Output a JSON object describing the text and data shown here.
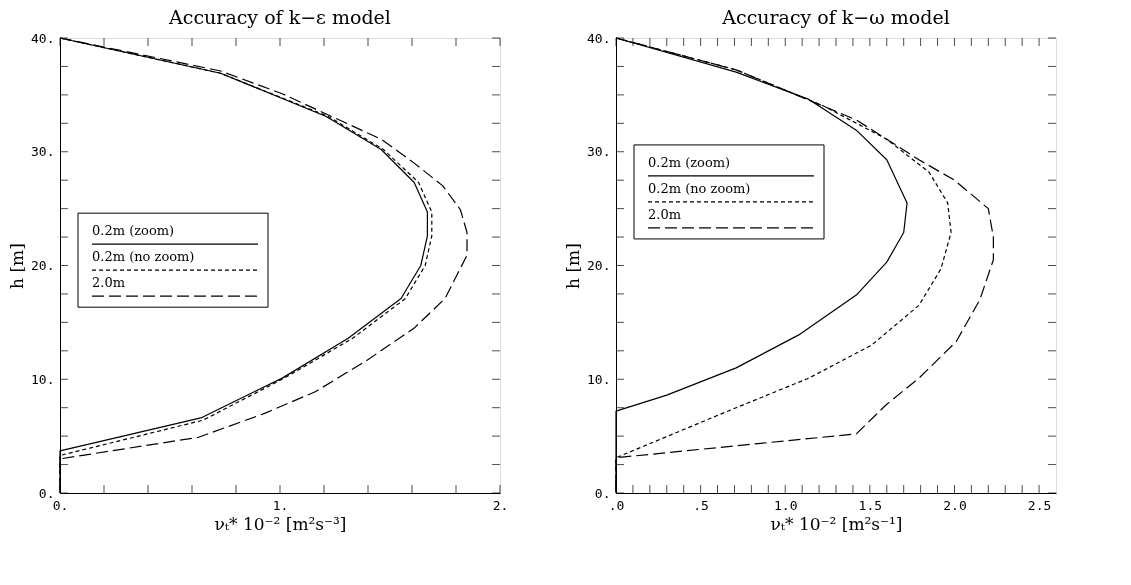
{
  "chart_data": [
    {
      "type": "line",
      "title": "Accuracy of k−ε model",
      "xlabel": "νₜ* 10⁻² [m²s⁻³]",
      "ylabel": "h [m]",
      "xlim": [
        0,
        2
      ],
      "ylim": [
        0,
        40
      ],
      "xticks": [
        {
          "value": 0,
          "label": "0."
        },
        {
          "value": 0.2,
          "label": null
        },
        {
          "value": 0.4,
          "label": null
        },
        {
          "value": 0.6,
          "label": null
        },
        {
          "value": 0.8,
          "label": null
        },
        {
          "value": 1,
          "label": "1."
        },
        {
          "value": 1.2,
          "label": null
        },
        {
          "value": 1.4,
          "label": null
        },
        {
          "value": 1.6,
          "label": null
        },
        {
          "value": 1.8,
          "label": null
        },
        {
          "value": 2,
          "label": "2."
        }
      ],
      "yticks": [
        {
          "value": 0,
          "label": "0."
        },
        {
          "value": 2.5,
          "label": null
        },
        {
          "value": 5,
          "label": null
        },
        {
          "value": 7.5,
          "label": null
        },
        {
          "value": 10,
          "label": "10."
        },
        {
          "value": 12.5,
          "label": null
        },
        {
          "value": 15,
          "label": null
        },
        {
          "value": 17.5,
          "label": null
        },
        {
          "value": 20,
          "label": "20."
        },
        {
          "value": 22.5,
          "label": null
        },
        {
          "value": 25,
          "label": null
        },
        {
          "value": 27.5,
          "label": null
        },
        {
          "value": 30,
          "label": "30."
        },
        {
          "value": 32.5,
          "label": null
        },
        {
          "value": 35,
          "label": null
        },
        {
          "value": 37.5,
          "label": null
        },
        {
          "value": 40,
          "label": "40."
        }
      ],
      "legend": "left",
      "grid": false,
      "series": [
        {
          "name": "0.2m (zoom)",
          "color": "#000000",
          "line_style": "solid",
          "x": [
            0,
            0.73,
            1.21,
            1.46,
            1.61,
            1.67,
            1.67,
            1.64,
            1.55,
            1.31,
            1.01,
            0.64,
            0,
            0
          ],
          "values": [
            40,
            36.9,
            33.1,
            30.2,
            27.3,
            24.7,
            22.6,
            20.0,
            17.1,
            13.6,
            10.1,
            6.6,
            3.7,
            0
          ]
        },
        {
          "name": "0.2m (no zoom)",
          "color": "#000000",
          "line_style": "dotted",
          "x": [
            0,
            0.73,
            1.22,
            1.47,
            1.63,
            1.69,
            1.69,
            1.66,
            1.57,
            1.33,
            1.02,
            0.65,
            0,
            0
          ],
          "values": [
            40,
            36.9,
            33.1,
            30.2,
            27.3,
            24.7,
            22.6,
            20.0,
            17.1,
            13.6,
            10.1,
            6.4,
            3.3,
            0
          ]
        },
        {
          "name": "2.0m",
          "color": "#000000",
          "line_style": "dashed",
          "x": [
            0,
            0.73,
            1.01,
            1.46,
            1.61,
            1.74,
            1.82,
            1.85,
            1.85,
            1.75,
            1.61,
            1.39,
            1.16,
            0.93,
            0.63,
            0,
            0
          ],
          "values": [
            40,
            37.1,
            35.1,
            31.1,
            29.0,
            27.0,
            24.9,
            22.9,
            20.9,
            17.1,
            14.5,
            11.6,
            8.9,
            7.0,
            4.9,
            3.0,
            0
          ]
        }
      ]
    },
    {
      "type": "line",
      "title": "Accuracy of k−ω model",
      "xlabel": "νₜ* 10⁻² [m²s⁻¹]",
      "ylabel": "h [m]",
      "xlim": [
        0,
        2.6
      ],
      "ylim": [
        0,
        40
      ],
      "xticks": [
        {
          "value": 0,
          "label": ".0"
        },
        {
          "value": 0.1,
          "label": null
        },
        {
          "value": 0.2,
          "label": null
        },
        {
          "value": 0.3,
          "label": null
        },
        {
          "value": 0.4,
          "label": null
        },
        {
          "value": 0.5,
          "label": ".5"
        },
        {
          "value": 0.6,
          "label": null
        },
        {
          "value": 0.7,
          "label": null
        },
        {
          "value": 0.8,
          "label": null
        },
        {
          "value": 0.9,
          "label": null
        },
        {
          "value": 1.0,
          "label": "1.0"
        },
        {
          "value": 1.1,
          "label": null
        },
        {
          "value": 1.2,
          "label": null
        },
        {
          "value": 1.3,
          "label": null
        },
        {
          "value": 1.4,
          "label": null
        },
        {
          "value": 1.5,
          "label": "1.5"
        },
        {
          "value": 1.6,
          "label": null
        },
        {
          "value": 1.7,
          "label": null
        },
        {
          "value": 1.8,
          "label": null
        },
        {
          "value": 1.9,
          "label": null
        },
        {
          "value": 2.0,
          "label": "2.0"
        },
        {
          "value": 2.1,
          "label": null
        },
        {
          "value": 2.2,
          "label": null
        },
        {
          "value": 2.3,
          "label": null
        },
        {
          "value": 2.4,
          "label": null
        },
        {
          "value": 2.5,
          "label": "2.5"
        }
      ],
      "yticks": [
        {
          "value": 0,
          "label": "0."
        },
        {
          "value": 2.5,
          "label": null
        },
        {
          "value": 5,
          "label": null
        },
        {
          "value": 7.5,
          "label": null
        },
        {
          "value": 10,
          "label": "10."
        },
        {
          "value": 12.5,
          "label": null
        },
        {
          "value": 15,
          "label": null
        },
        {
          "value": 17.5,
          "label": null
        },
        {
          "value": 20,
          "label": "20."
        },
        {
          "value": 22.5,
          "label": null
        },
        {
          "value": 25,
          "label": null
        },
        {
          "value": 27.5,
          "label": null
        },
        {
          "value": 30,
          "label": "30."
        },
        {
          "value": 32.5,
          "label": null
        },
        {
          "value": 35,
          "label": null
        },
        {
          "value": 37.5,
          "label": null
        },
        {
          "value": 40,
          "label": "40."
        }
      ],
      "legend": "top left",
      "grid": false,
      "series": [
        {
          "name": "0.2m (zoom)",
          "color": "#000000",
          "line_style": "solid",
          "x": [
            0,
            0.71,
            1.14,
            1.42,
            1.6,
            1.72,
            1.7,
            1.6,
            1.42,
            1.08,
            0.71,
            0.3,
            0,
            0
          ],
          "values": [
            40,
            37.0,
            34.6,
            31.9,
            29.3,
            25.5,
            22.9,
            20.3,
            17.4,
            13.9,
            11.0,
            8.6,
            7.2,
            0
          ]
        },
        {
          "name": "0.2m (no zoom)",
          "color": "#000000",
          "line_style": "dotted",
          "x": [
            0,
            0.71,
            1.23,
            1.6,
            1.85,
            1.96,
            1.98,
            1.92,
            1.79,
            1.51,
            1.14,
            0.71,
            0,
            0
          ],
          "values": [
            40,
            37.2,
            34.0,
            31.1,
            28.2,
            25.5,
            22.9,
            19.7,
            16.5,
            13.0,
            10.1,
            7.5,
            3.1,
            0
          ]
        },
        {
          "name": "2.0m",
          "color": "#000000",
          "line_style": "dashed",
          "x": [
            0,
            0.71,
            1.42,
            1.79,
            2.0,
            2.2,
            2.23,
            2.23,
            2.15,
            2.01,
            1.79,
            1.6,
            1.42,
            0,
            0
          ],
          "values": [
            40,
            37.2,
            32.8,
            29.3,
            27.5,
            25,
            22.5,
            20.5,
            17,
            13.3,
            10.1,
            7.8,
            5.2,
            3.1,
            0
          ]
        }
      ]
    }
  ]
}
